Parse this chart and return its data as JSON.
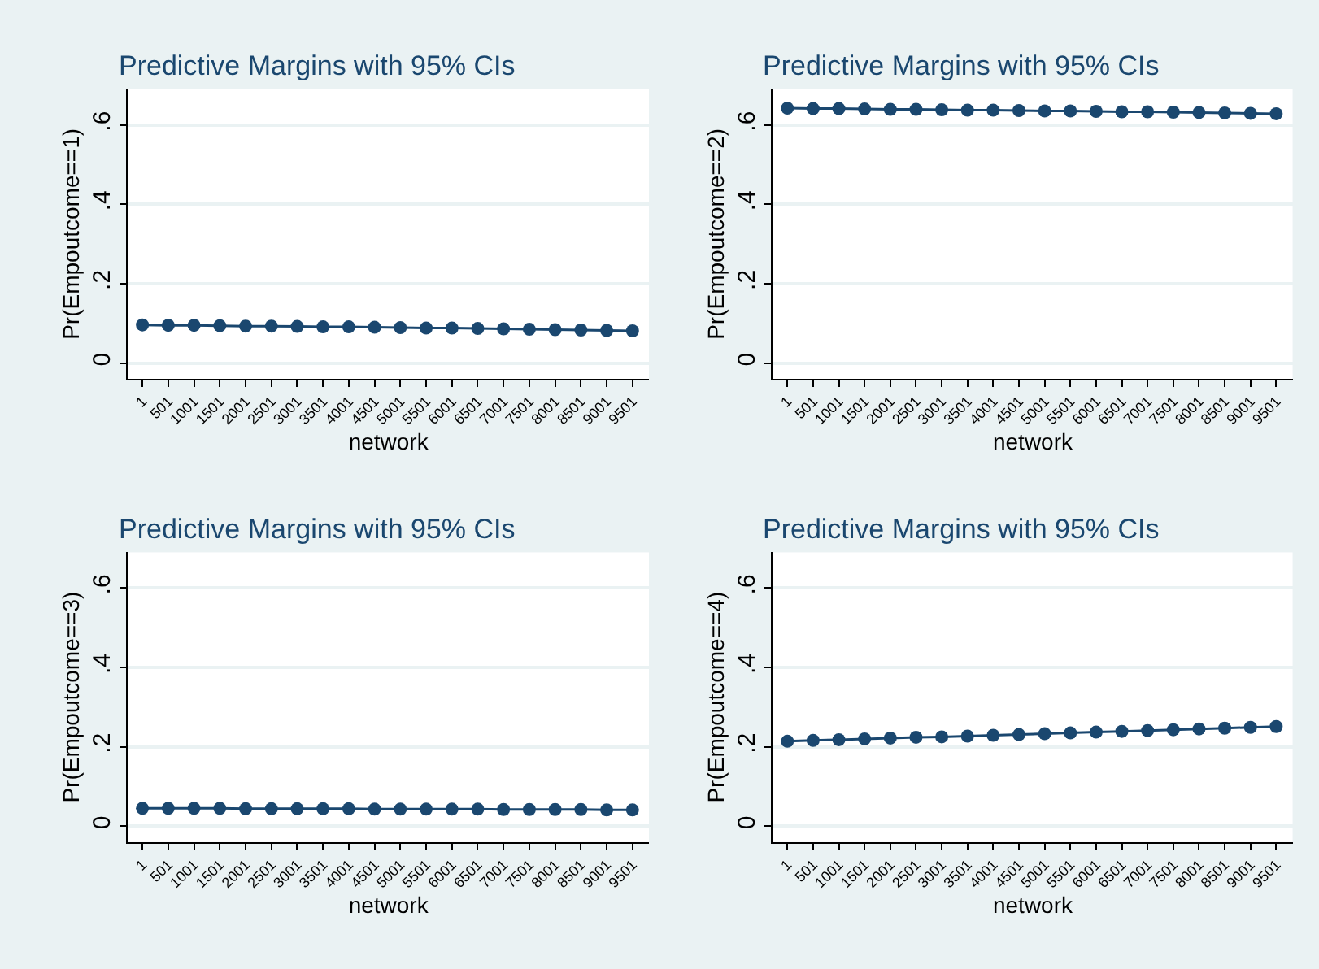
{
  "chart_data": [
    {
      "type": "line",
      "title": "Predictive Margins with 95% CIs",
      "xlabel": "network",
      "ylabel": "Pr(Empoutcome==1)",
      "x": [
        1,
        501,
        1001,
        1501,
        2001,
        2501,
        3001,
        3501,
        4001,
        4501,
        5001,
        5501,
        6001,
        6501,
        7001,
        7501,
        8001,
        8501,
        9001,
        9501
      ],
      "xlim": [
        -280,
        9820
      ],
      "xticks": [
        1,
        501,
        1001,
        1501,
        2001,
        2501,
        3001,
        3501,
        4001,
        4501,
        5001,
        5501,
        6001,
        6501,
        7001,
        7501,
        8001,
        8501,
        9001,
        9501
      ],
      "ylim": [
        -0.04,
        0.69
      ],
      "yticks": [
        0,
        {
          "value": 0.2,
          "label": ".2"
        },
        {
          "value": 0.4,
          "label": ".4"
        },
        {
          "value": 0.6,
          "label": ".6"
        }
      ],
      "grid": "y",
      "marker": "circle",
      "series": [
        {
          "color": "#1a476f",
          "values": [
            0.096,
            0.095,
            0.095,
            0.094,
            0.093,
            0.093,
            0.092,
            0.091,
            0.091,
            0.09,
            0.089,
            0.088,
            0.088,
            0.087,
            0.086,
            0.085,
            0.084,
            0.083,
            0.082,
            0.081
          ]
        }
      ]
    },
    {
      "type": "line",
      "title": "Predictive Margins with 95% CIs",
      "xlabel": "network",
      "ylabel": "Pr(Empoutcome==2)",
      "x": [
        1,
        501,
        1001,
        1501,
        2001,
        2501,
        3001,
        3501,
        4001,
        4501,
        5001,
        5501,
        6001,
        6501,
        7001,
        7501,
        8001,
        8501,
        9001,
        9501
      ],
      "xlim": [
        -280,
        9820
      ],
      "xticks": [
        1,
        501,
        1001,
        1501,
        2001,
        2501,
        3001,
        3501,
        4001,
        4501,
        5001,
        5501,
        6001,
        6501,
        7001,
        7501,
        8001,
        8501,
        9001,
        9501
      ],
      "ylim": [
        -0.04,
        0.69
      ],
      "yticks": [
        0,
        {
          "value": 0.2,
          "label": ".2"
        },
        {
          "value": 0.4,
          "label": ".4"
        },
        {
          "value": 0.6,
          "label": ".6"
        }
      ],
      "grid": "y",
      "marker": "circle",
      "series": [
        {
          "color": "#1a476f",
          "values": [
            0.642,
            0.641,
            0.641,
            0.64,
            0.639,
            0.639,
            0.638,
            0.637,
            0.637,
            0.636,
            0.635,
            0.635,
            0.634,
            0.633,
            0.633,
            0.632,
            0.631,
            0.63,
            0.629,
            0.628
          ]
        }
      ]
    },
    {
      "type": "line",
      "title": "Predictive Margins with 95% CIs",
      "xlabel": "network",
      "ylabel": "Pr(Empoutcome==3)",
      "x": [
        1,
        501,
        1001,
        1501,
        2001,
        2501,
        3001,
        3501,
        4001,
        4501,
        5001,
        5501,
        6001,
        6501,
        7001,
        7501,
        8001,
        8501,
        9001,
        9501
      ],
      "xlim": [
        -280,
        9820
      ],
      "xticks": [
        1,
        501,
        1001,
        1501,
        2001,
        2501,
        3001,
        3501,
        4001,
        4501,
        5001,
        5501,
        6001,
        6501,
        7001,
        7501,
        8001,
        8501,
        9001,
        9501
      ],
      "ylim": [
        -0.04,
        0.69
      ],
      "yticks": [
        0,
        {
          "value": 0.2,
          "label": ".2"
        },
        {
          "value": 0.4,
          "label": ".4"
        },
        {
          "value": 0.6,
          "label": ".6"
        }
      ],
      "grid": "y",
      "marker": "circle",
      "series": [
        {
          "color": "#1a476f",
          "values": [
            0.045,
            0.045,
            0.045,
            0.045,
            0.044,
            0.044,
            0.044,
            0.044,
            0.044,
            0.043,
            0.043,
            0.043,
            0.043,
            0.043,
            0.042,
            0.042,
            0.042,
            0.042,
            0.041,
            0.041
          ]
        }
      ]
    },
    {
      "type": "line",
      "title": "Predictive Margins with 95% CIs",
      "xlabel": "network",
      "ylabel": "Pr(Empoutcome==4)",
      "x": [
        1,
        501,
        1001,
        1501,
        2001,
        2501,
        3001,
        3501,
        4001,
        4501,
        5001,
        5501,
        6001,
        6501,
        7001,
        7501,
        8001,
        8501,
        9001,
        9501
      ],
      "xlim": [
        -280,
        9820
      ],
      "xticks": [
        1,
        501,
        1001,
        1501,
        2001,
        2501,
        3001,
        3501,
        4001,
        4501,
        5001,
        5501,
        6001,
        6501,
        7001,
        7501,
        8001,
        8501,
        9001,
        9501
      ],
      "ylim": [
        -0.04,
        0.69
      ],
      "yticks": [
        0,
        {
          "value": 0.2,
          "label": ".2"
        },
        {
          "value": 0.4,
          "label": ".4"
        },
        {
          "value": 0.6,
          "label": ".6"
        }
      ],
      "grid": "y",
      "marker": "circle",
      "series": [
        {
          "color": "#1a476f",
          "values": [
            0.214,
            0.216,
            0.218,
            0.22,
            0.222,
            0.224,
            0.225,
            0.227,
            0.229,
            0.231,
            0.233,
            0.235,
            0.237,
            0.239,
            0.241,
            0.243,
            0.245,
            0.247,
            0.249,
            0.251
          ]
        }
      ]
    }
  ]
}
